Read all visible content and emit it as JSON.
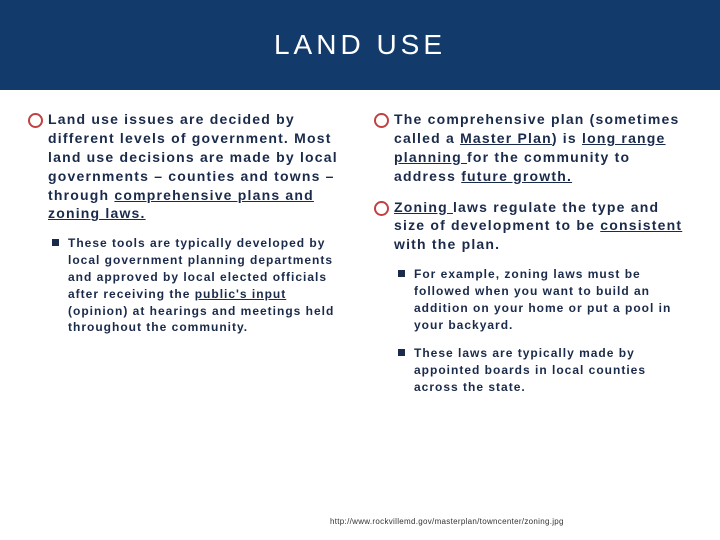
{
  "colors": {
    "title_bar_bg": "#123a6b",
    "bullet_ring": "#c44040",
    "text": "#1a2a4a",
    "page_bg": "#ffffff"
  },
  "title": "LAND USE",
  "left": {
    "p1": {
      "t0": "Land use issues are decided by different levels of government. Most land use decisions are made by local governments – counties and towns – through ",
      "u1": "comprehensive plans and zoning laws."
    },
    "s1": {
      "t0": "These tools are typically developed by local government planning departments and approved by local elected officials after receiving the ",
      "u1": "public's input ",
      "t2": "(opinion) at hearings and meetings held throughout the community."
    }
  },
  "right": {
    "p1": {
      "t0": "The comprehensive plan (sometimes called a ",
      "u1": "Master Plan",
      "t2": ") is ",
      "u3": "long range planning ",
      "t4": "for the community to address ",
      "u5": "future growth."
    },
    "p2": {
      "u0": "Zoning ",
      "t1": "laws regulate the type and size of development to be ",
      "u2": "consistent ",
      "t3": "with the plan."
    },
    "s1": {
      "t0": "For example, zoning laws must be followed when you want to build an addition on your home or put a pool in your backyard."
    },
    "s2": {
      "t0": "These laws are typically made by appointed boards in local counties across the state."
    }
  },
  "footer_url": "http://www.rockvillemd.gov/masterplan/towncenter/zoning.jpg"
}
